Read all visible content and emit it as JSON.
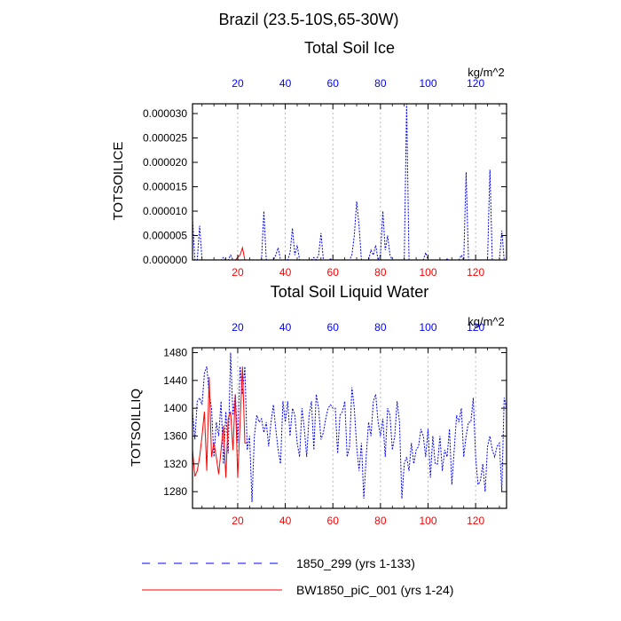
{
  "figure_title": "Brazil (23.5-10S,65-30W)",
  "units": "kg/m^2",
  "colors": {
    "series_1850": "#0000ff",
    "series_bw": "#ff0000",
    "grid": "#aaaaaa",
    "axis": "#000000"
  },
  "legend": {
    "entries": [
      {
        "label": "1850_299 (yrs 1-133)",
        "color": "#0000ff",
        "style": "dashed"
      },
      {
        "label": "BW1850_piC_001 (yrs 1-24)",
        "color": "#ff0000",
        "style": "solid"
      }
    ]
  },
  "chart_data": [
    {
      "type": "line",
      "title": "Total Soil Ice",
      "ylabel": "TOTSOILICE",
      "xlim": [
        1,
        133
      ],
      "ylim": [
        0,
        3.2e-05
      ],
      "xticks": [
        20,
        40,
        60,
        80,
        100,
        120
      ],
      "xtick_labels": [
        "20",
        "40",
        "60",
        "80",
        "100",
        "120"
      ],
      "yticks": [
        0,
        5e-06,
        1e-05,
        1.5e-05,
        2e-05,
        2.5e-05,
        3e-05
      ],
      "ytick_labels": [
        "0.000000",
        "0.000005",
        "0.000010",
        "0.000015",
        "0.000020",
        "0.000025",
        "0.000030"
      ],
      "grid_x": true,
      "series": [
        {
          "name": "1850_299 (yrs 1-133)",
          "x_start": 1,
          "values": [
            8.5e-06,
            0,
            0,
            7e-06,
            0,
            0,
            0,
            0,
            0,
            0,
            0,
            0,
            0,
            5e-07,
            0,
            0,
            1e-06,
            0,
            0,
            0,
            0,
            0,
            0,
            0,
            0,
            0,
            0,
            0,
            0,
            0,
            1e-05,
            0,
            0,
            0,
            0,
            1e-06,
            2.5e-06,
            0,
            0,
            0,
            0,
            1.5e-06,
            6.5e-06,
            1e-06,
            3e-06,
            0,
            0,
            0,
            0,
            0,
            0,
            5e-07,
            0,
            1e-06,
            5.5e-06,
            0,
            0,
            0,
            2e-07,
            0,
            0,
            0,
            0,
            0,
            0,
            0,
            0,
            1e-06,
            5e-06,
            1.2e-05,
            7e-06,
            0,
            0,
            0,
            0,
            2e-06,
            1e-06,
            3e-06,
            0,
            1e-06,
            1e-05,
            2e-06,
            5e-06,
            1e-06,
            0,
            0,
            0,
            0,
            0,
            0,
            3.2e-05,
            0,
            0,
            0,
            0,
            0,
            0,
            0,
            1.5e-06,
            0,
            0,
            0,
            0,
            0,
            0,
            0,
            0,
            2e-07,
            0,
            0,
            0,
            0,
            0,
            1e-06,
            0,
            1.8e-05,
            0,
            0,
            0,
            0,
            0,
            0,
            0,
            0,
            0,
            1.85e-05,
            0,
            0,
            0,
            0,
            6e-06,
            0
          ]
        },
        {
          "name": "BW1850_piC_001 (yrs 1-24)",
          "x_start": 1,
          "values": [
            0,
            0,
            0,
            0,
            0,
            0,
            0,
            0,
            0,
            0,
            0,
            0,
            0,
            0,
            0,
            0,
            0,
            0,
            0,
            5e-07,
            1e-06,
            2.5e-06,
            0,
            0
          ]
        }
      ]
    },
    {
      "type": "line",
      "title": "Total Soil Liquid Water",
      "ylabel": "TOTSOILLIQ",
      "xlim": [
        1,
        133
      ],
      "ylim": [
        1256,
        1487
      ],
      "xticks": [
        20,
        40,
        60,
        80,
        100,
        120
      ],
      "xtick_labels": [
        "20",
        "40",
        "60",
        "80",
        "100",
        "120"
      ],
      "yticks": [
        1280,
        1320,
        1360,
        1400,
        1440,
        1480
      ],
      "ytick_labels": [
        "1280",
        "1320",
        "1360",
        "1400",
        "1440",
        "1480"
      ],
      "grid_x": true,
      "series": [
        {
          "name": "1850_299 (yrs 1-133)",
          "x_start": 1,
          "values": [
            1395,
            1355,
            1410,
            1415,
            1405,
            1450,
            1460,
            1420,
            1400,
            1330,
            1380,
            1360,
            1410,
            1320,
            1395,
            1335,
            1480,
            1390,
            1420,
            1350,
            1460,
            1420,
            1460,
            1340,
            1360,
            1265,
            1360,
            1390,
            1380,
            1385,
            1365,
            1380,
            1345,
            1380,
            1405,
            1370,
            1340,
            1320,
            1410,
            1380,
            1410,
            1360,
            1400,
            1390,
            1350,
            1330,
            1400,
            1370,
            1330,
            1390,
            1410,
            1340,
            1420,
            1400,
            1355,
            1365,
            1385,
            1400,
            1405,
            1400,
            1400,
            1335,
            1390,
            1395,
            1410,
            1330,
            1345,
            1430,
            1400,
            1345,
            1310,
            1350,
            1270,
            1330,
            1380,
            1360,
            1410,
            1420,
            1380,
            1360,
            1385,
            1330,
            1400,
            1390,
            1340,
            1360,
            1410,
            1380,
            1270,
            1320,
            1330,
            1310,
            1350,
            1320,
            1340,
            1345,
            1370,
            1360,
            1330,
            1370,
            1300,
            1360,
            1320,
            1320,
            1360,
            1310,
            1340,
            1330,
            1370,
            1290,
            1340,
            1390,
            1380,
            1400,
            1330,
            1360,
            1380,
            1380,
            1415,
            1330,
            1290,
            1295,
            1320,
            1280,
            1345,
            1360,
            1340,
            1330,
            1345,
            1350,
            1280,
            1415,
            1400
          ]
        },
        {
          "name": "BW1850_piC_001 (yrs 1-24)",
          "x_start": 1,
          "values": [
            1340,
            1302,
            1310,
            1330,
            1360,
            1395,
            1310,
            1445,
            1330,
            1350,
            1330,
            1305,
            1340,
            1375,
            1300,
            1385,
            1395,
            1340,
            1420,
            1300,
            1380,
            1460,
            1350,
            1350
          ]
        }
      ]
    }
  ]
}
